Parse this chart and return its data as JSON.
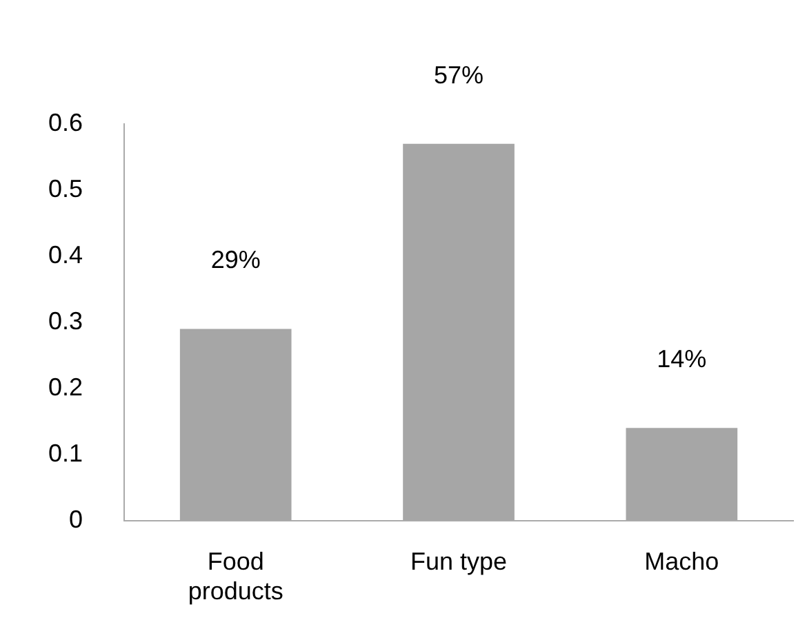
{
  "chart_data": {
    "type": "bar",
    "categories": [
      "Food products",
      "Fun type",
      "Macho"
    ],
    "values": [
      0.29,
      0.57,
      0.14
    ],
    "value_labels": [
      "29%",
      "57%",
      "14%"
    ],
    "color": "#a6a6a6",
    "ylim": [
      0,
      0.6
    ],
    "yticks": [
      0,
      0.1,
      0.2,
      0.3,
      0.4,
      0.5,
      0.6
    ],
    "grid": false,
    "legend": false
  }
}
